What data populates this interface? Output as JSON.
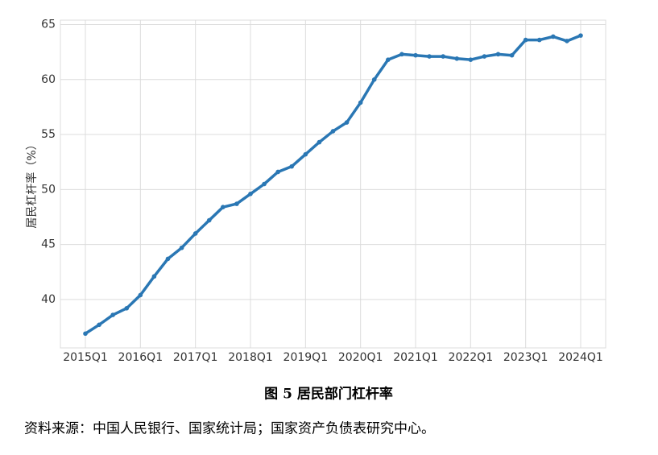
{
  "chart_data": {
    "type": "line",
    "title": "图 5 居民部门杠杆率",
    "y_label": "居民杠杆率（%）",
    "source": "资料来源：中国人民银行、国家统计局；国家资产负债表研究中心。",
    "categories": [
      "2015Q1",
      null,
      null,
      null,
      "2016Q1",
      null,
      null,
      null,
      "2017Q1",
      null,
      null,
      null,
      "2018Q1",
      null,
      null,
      null,
      "2019Q1",
      null,
      null,
      null,
      "2020Q1",
      null,
      null,
      null,
      "2021Q1",
      null,
      null,
      null,
      "2022Q1",
      null,
      null,
      null,
      "2023Q1",
      null,
      null,
      null,
      "2024Q1"
    ],
    "values": [
      36.9,
      37.7,
      38.6,
      39.2,
      40.4,
      42.1,
      43.7,
      44.7,
      46.0,
      47.2,
      48.4,
      48.7,
      49.6,
      50.5,
      51.6,
      52.1,
      53.2,
      54.3,
      55.3,
      56.1,
      57.9,
      60.0,
      61.8,
      62.3,
      62.2,
      62.1,
      62.1,
      61.9,
      61.8,
      62.1,
      62.3,
      62.2,
      63.6,
      63.6,
      63.9,
      63.5,
      64.0
    ],
    "color": "#2a77b4",
    "ylim": [
      35.6,
      65.4
    ],
    "yticks": [
      40,
      45,
      50,
      55,
      60,
      65
    ],
    "grid": true
  }
}
